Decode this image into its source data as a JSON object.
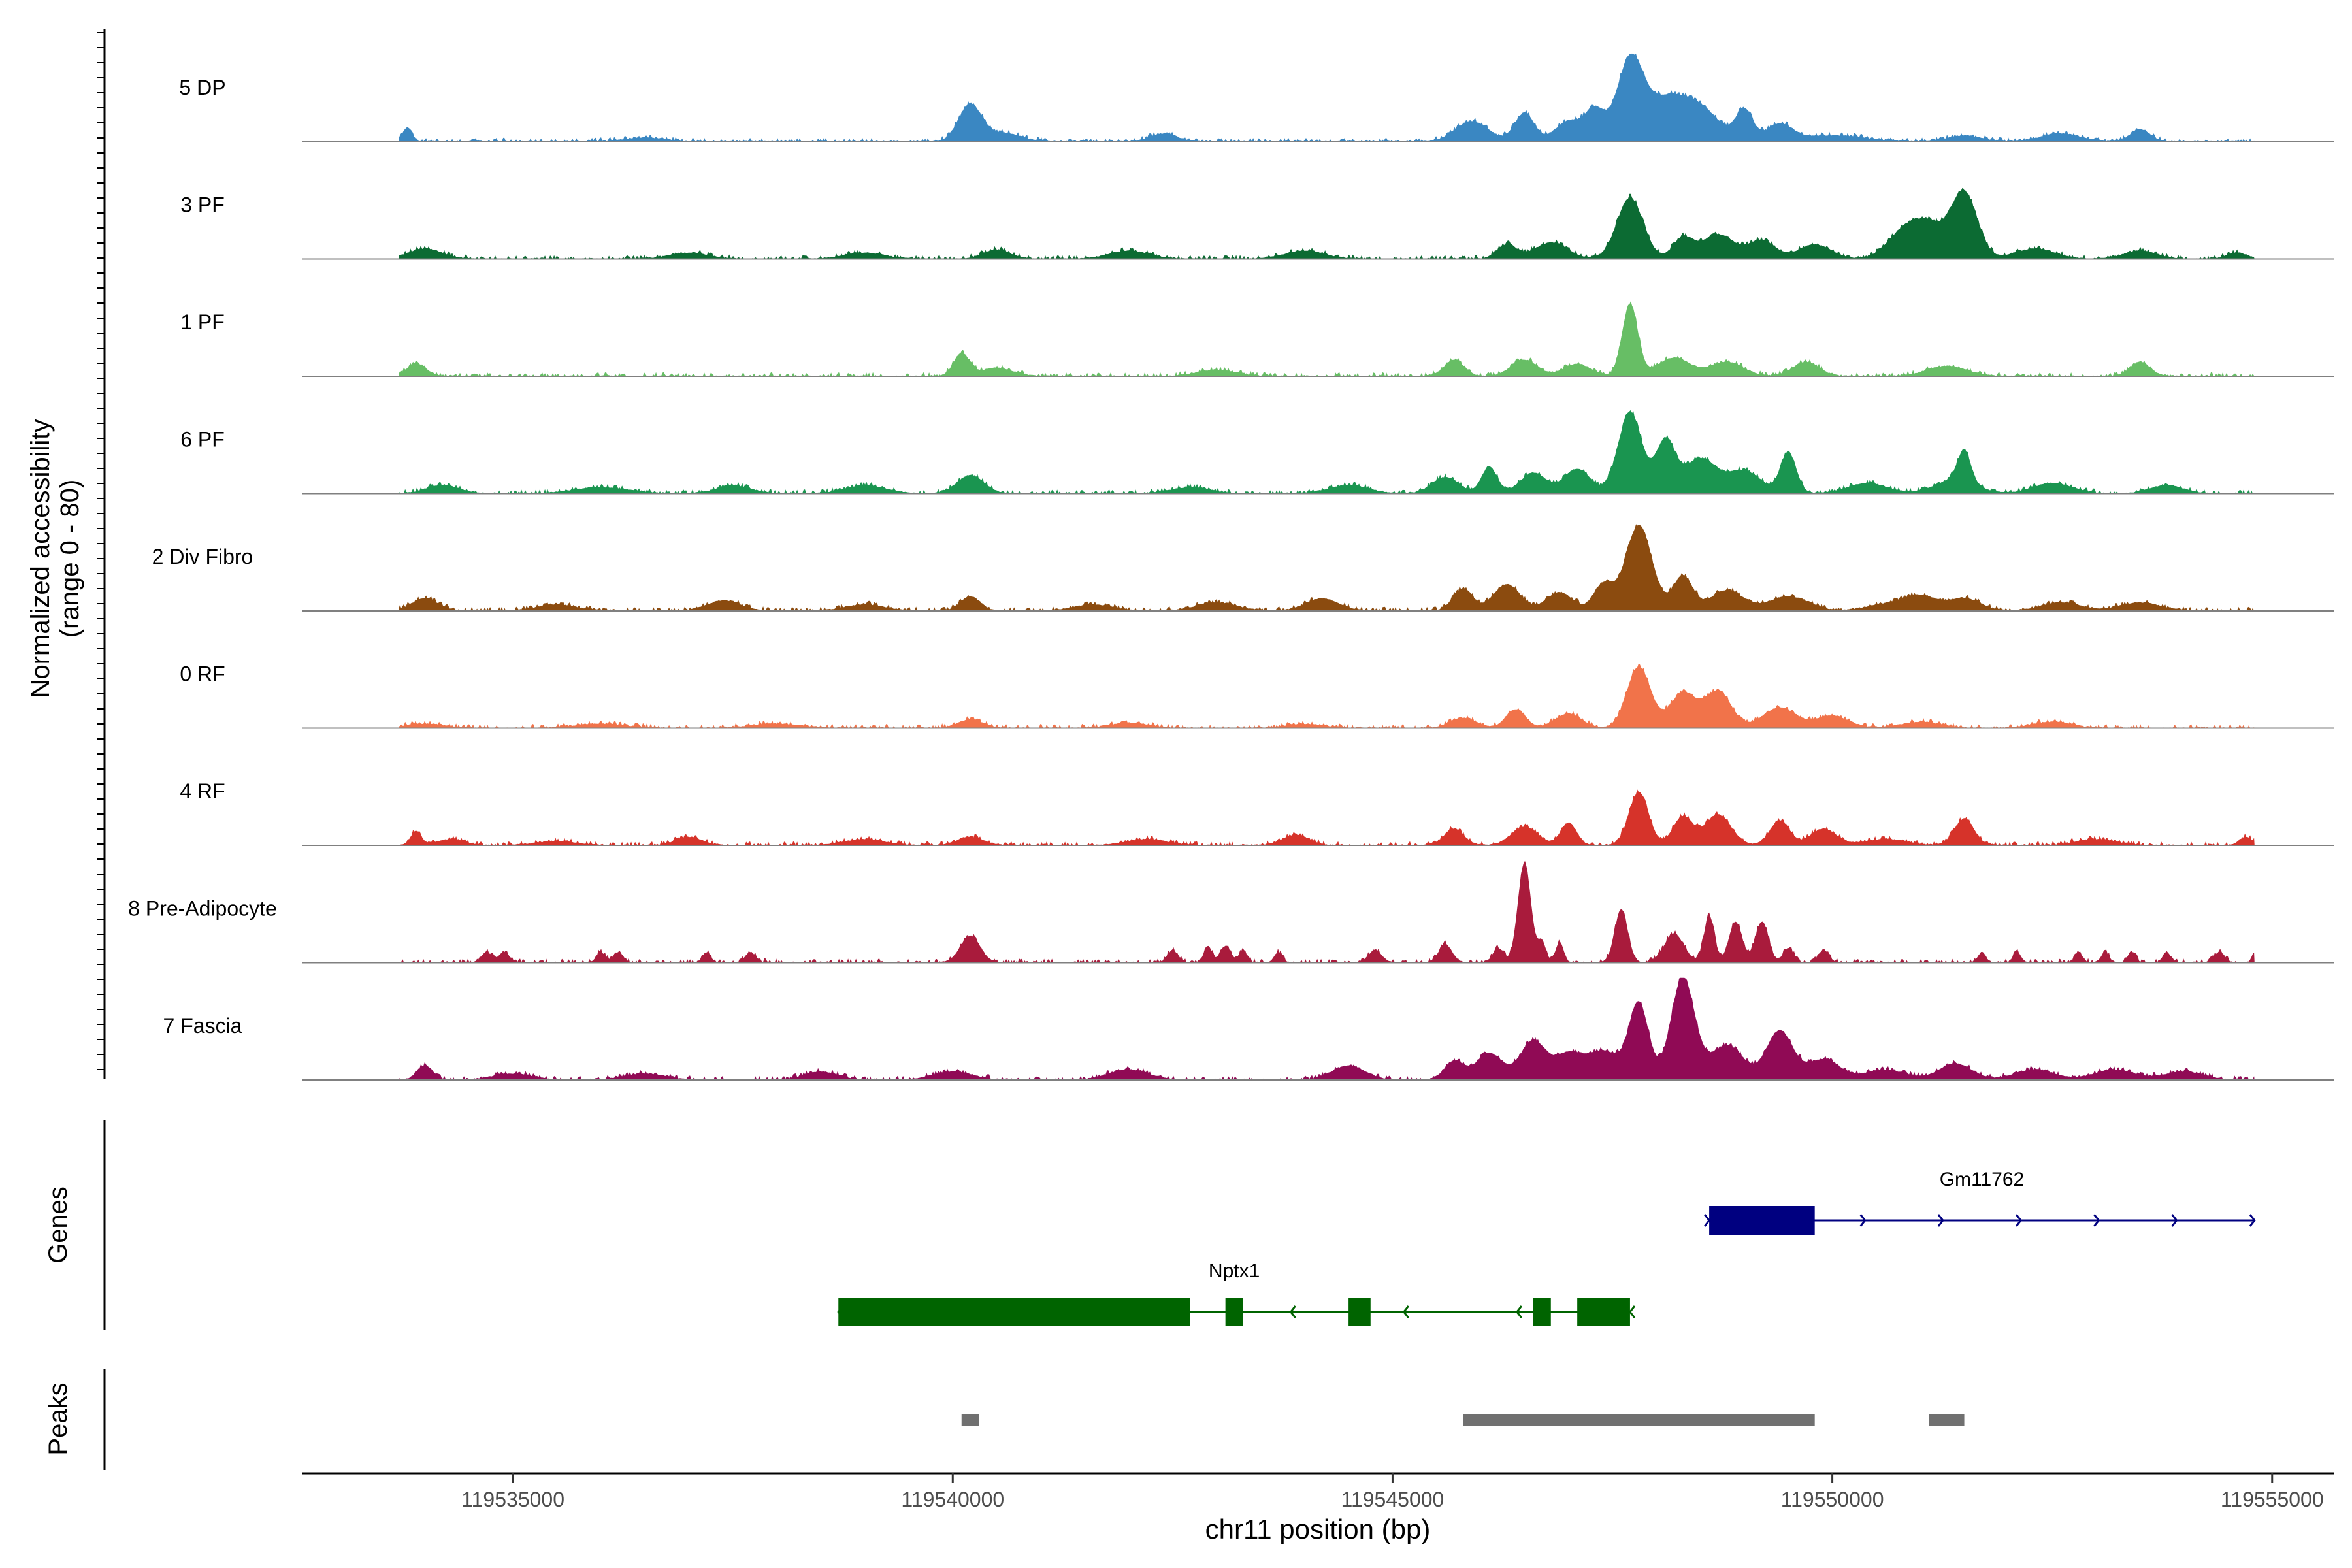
{
  "chart_data": {
    "type": "area",
    "title": "",
    "ylabel": [
      "Normalized accessibility",
      "(range 0 - 80)"
    ],
    "xlabel": "chr11 position (bp)",
    "xlim": [
      119532600,
      119555700
    ],
    "ylim": [
      0,
      80
    ],
    "x_ticks": [
      119535000,
      119540000,
      119545000,
      119550000,
      119555000
    ],
    "x_tick_labels": [
      "119535000",
      "119540000",
      "119545000",
      "119550000",
      "119555000"
    ],
    "track_start": 119533700,
    "track_end": 119554800,
    "tracks": [
      {
        "name": "5 DP",
        "color": "#3A87C2",
        "peaks": [
          [
            119533800,
            14,
            70
          ],
          [
            119536500,
            4,
            300
          ],
          [
            119540200,
            36,
            180
          ],
          [
            119540600,
            8,
            250
          ],
          [
            119542400,
            8,
            200
          ],
          [
            119545900,
            20,
            250
          ],
          [
            119546500,
            28,
            150
          ],
          [
            119547000,
            20,
            200
          ],
          [
            119547300,
            30,
            150
          ],
          [
            119547700,
            78,
            200
          ],
          [
            119548100,
            38,
            300
          ],
          [
            119548500,
            30,
            300
          ],
          [
            119549000,
            30,
            130
          ],
          [
            119549400,
            16,
            200
          ],
          [
            119550000,
            6,
            500
          ],
          [
            119551500,
            6,
            250
          ],
          [
            119552600,
            8,
            300
          ],
          [
            119553500,
            12,
            150
          ]
        ]
      },
      {
        "name": "3 PF",
        "color": "#0C6B33",
        "peaks": [
          [
            119534000,
            10,
            250
          ],
          [
            119537000,
            6,
            300
          ],
          [
            119539000,
            6,
            300
          ],
          [
            119540500,
            9,
            200
          ],
          [
            119542000,
            8,
            300
          ],
          [
            119544000,
            8,
            300
          ],
          [
            119546300,
            14,
            150
          ],
          [
            119546800,
            16,
            250
          ],
          [
            119547700,
            60,
            200
          ],
          [
            119548300,
            20,
            150
          ],
          [
            119548700,
            24,
            250
          ],
          [
            119549200,
            18,
            200
          ],
          [
            119549800,
            14,
            250
          ],
          [
            119550800,
            24,
            250
          ],
          [
            119551500,
            64,
            200
          ],
          [
            119551100,
            30,
            250
          ],
          [
            119552300,
            10,
            300
          ],
          [
            119553500,
            8,
            250
          ],
          [
            119554600,
            6,
            150
          ]
        ]
      },
      {
        "name": "1 PF",
        "color": "#67BE65",
        "peaks": [
          [
            119533900,
            12,
            150
          ],
          [
            119540100,
            22,
            120
          ],
          [
            119540500,
            8,
            250
          ],
          [
            119543000,
            6,
            300
          ],
          [
            119545700,
            16,
            150
          ],
          [
            119546500,
            16,
            200
          ],
          [
            119547100,
            12,
            200
          ],
          [
            119547700,
            70,
            120
          ],
          [
            119548200,
            18,
            250
          ],
          [
            119548800,
            14,
            250
          ],
          [
            119549700,
            14,
            200
          ],
          [
            119551300,
            10,
            300
          ],
          [
            119553500,
            14,
            150
          ]
        ]
      },
      {
        "name": "6 PF",
        "color": "#1A9550",
        "peaks": [
          [
            119534200,
            8,
            250
          ],
          [
            119536000,
            6,
            400
          ],
          [
            119537500,
            8,
            250
          ],
          [
            119539000,
            8,
            300
          ],
          [
            119540200,
            18,
            200
          ],
          [
            119542700,
            6,
            300
          ],
          [
            119544500,
            8,
            300
          ],
          [
            119545600,
            16,
            200
          ],
          [
            119546100,
            26,
            120
          ],
          [
            119546600,
            20,
            200
          ],
          [
            119547100,
            24,
            200
          ],
          [
            119547700,
            80,
            180
          ],
          [
            119548100,
            50,
            150
          ],
          [
            119548500,
            34,
            250
          ],
          [
            119549000,
            22,
            250
          ],
          [
            119549500,
            40,
            120
          ],
          [
            119550400,
            10,
            300
          ],
          [
            119551400,
            14,
            300
          ],
          [
            119551500,
            30,
            100
          ],
          [
            119552500,
            10,
            300
          ],
          [
            119553800,
            8,
            250
          ]
        ]
      },
      {
        "name": "2 Div Fibro",
        "color": "#8B4B0F",
        "peaks": [
          [
            119534000,
            12,
            200
          ],
          [
            119535500,
            6,
            300
          ],
          [
            119537400,
            10,
            250
          ],
          [
            119539000,
            6,
            300
          ],
          [
            119540200,
            14,
            150
          ],
          [
            119541600,
            6,
            300
          ],
          [
            119543000,
            8,
            300
          ],
          [
            119544200,
            12,
            250
          ],
          [
            119545800,
            22,
            150
          ],
          [
            119546300,
            26,
            200
          ],
          [
            119546900,
            18,
            200
          ],
          [
            119547400,
            26,
            150
          ],
          [
            119547800,
            84,
            200
          ],
          [
            119548300,
            34,
            150
          ],
          [
            119548800,
            20,
            250
          ],
          [
            119549500,
            14,
            300
          ],
          [
            119550600,
            6,
            300
          ],
          [
            119551000,
            14,
            250
          ],
          [
            119551500,
            12,
            250
          ],
          [
            119552600,
            8,
            300
          ],
          [
            119553500,
            8,
            300
          ]
        ]
      },
      {
        "name": "0 RF",
        "color": "#F1734A",
        "peaks": [
          [
            119534000,
            4,
            300
          ],
          [
            119536000,
            4,
            400
          ],
          [
            119538000,
            4,
            400
          ],
          [
            119540200,
            8,
            200
          ],
          [
            119542000,
            5,
            300
          ],
          [
            119544000,
            4,
            300
          ],
          [
            119545800,
            10,
            200
          ],
          [
            119546400,
            18,
            150
          ],
          [
            119547000,
            14,
            200
          ],
          [
            119547800,
            60,
            180
          ],
          [
            119548300,
            34,
            200
          ],
          [
            119548700,
            36,
            200
          ],
          [
            119549400,
            20,
            250
          ],
          [
            119550000,
            12,
            250
          ],
          [
            119551000,
            6,
            300
          ],
          [
            119552500,
            6,
            300
          ]
        ]
      },
      {
        "name": "4 RF",
        "color": "#D6332A",
        "peaks": [
          [
            119533900,
            14,
            80
          ],
          [
            119534300,
            6,
            200
          ],
          [
            119535500,
            4,
            300
          ],
          [
            119537000,
            8,
            200
          ],
          [
            119539000,
            6,
            300
          ],
          [
            119540200,
            8,
            200
          ],
          [
            119542200,
            6,
            300
          ],
          [
            119543900,
            10,
            200
          ],
          [
            119545700,
            16,
            150
          ],
          [
            119546500,
            18,
            200
          ],
          [
            119547000,
            22,
            120
          ],
          [
            119547800,
            52,
            150
          ],
          [
            119548300,
            28,
            150
          ],
          [
            119548700,
            30,
            200
          ],
          [
            119549400,
            24,
            150
          ],
          [
            119549900,
            16,
            200
          ],
          [
            119550600,
            6,
            300
          ],
          [
            119551500,
            26,
            150
          ],
          [
            119553000,
            6,
            300
          ],
          [
            119554700,
            8,
            100
          ]
        ]
      },
      {
        "name": "8 Pre-Adipocyte",
        "color": "#A91B3C",
        "peaks": [
          [
            119534700,
            10,
            80
          ],
          [
            119534900,
            10,
            80
          ],
          [
            119536000,
            10,
            70
          ],
          [
            119536200,
            10,
            70
          ],
          [
            119537200,
            10,
            60
          ],
          [
            119537700,
            10,
            80
          ],
          [
            119540200,
            26,
            150
          ],
          [
            119542500,
            12,
            80
          ],
          [
            119542900,
            16,
            60
          ],
          [
            119543100,
            16,
            80
          ],
          [
            119543300,
            12,
            60
          ],
          [
            119543700,
            10,
            60
          ],
          [
            119544800,
            12,
            100
          ],
          [
            119545600,
            18,
            100
          ],
          [
            119546200,
            14,
            80
          ],
          [
            119546500,
            98,
            100
          ],
          [
            119546700,
            20,
            60
          ],
          [
            119546900,
            20,
            60
          ],
          [
            119547600,
            52,
            100
          ],
          [
            119548200,
            28,
            150
          ],
          [
            119548600,
            46,
            80
          ],
          [
            119548900,
            40,
            100
          ],
          [
            119549200,
            40,
            100
          ],
          [
            119549500,
            14,
            80
          ],
          [
            119549900,
            12,
            80
          ],
          [
            119551700,
            10,
            60
          ],
          [
            119552100,
            10,
            60
          ],
          [
            119552800,
            10,
            60
          ],
          [
            119553100,
            10,
            60
          ],
          [
            119553400,
            10,
            60
          ],
          [
            119553800,
            10,
            60
          ],
          [
            119554400,
            10,
            80
          ],
          [
            119554800,
            10,
            40
          ]
        ]
      },
      {
        "name": "7 Fascia",
        "color": "#900A55",
        "peaks": [
          [
            119534000,
            14,
            120
          ],
          [
            119535000,
            6,
            300
          ],
          [
            119536500,
            6,
            300
          ],
          [
            119538500,
            8,
            250
          ],
          [
            119540000,
            8,
            300
          ],
          [
            119542000,
            10,
            300
          ],
          [
            119544500,
            14,
            250
          ],
          [
            119545700,
            18,
            150
          ],
          [
            119546100,
            26,
            200
          ],
          [
            119546600,
            38,
            200
          ],
          [
            119547000,
            24,
            200
          ],
          [
            119547400,
            28,
            250
          ],
          [
            119547800,
            74,
            150
          ],
          [
            119548300,
            100,
            180
          ],
          [
            119548800,
            34,
            250
          ],
          [
            119549400,
            48,
            200
          ],
          [
            119549900,
            20,
            250
          ],
          [
            119550600,
            10,
            300
          ],
          [
            119551400,
            16,
            250
          ],
          [
            119552300,
            10,
            300
          ],
          [
            119553200,
            10,
            300
          ],
          [
            119554000,
            8,
            300
          ]
        ]
      }
    ],
    "genes": [
      {
        "name": "Gm11762",
        "strand": "+",
        "color": "#000080",
        "start": 119548600,
        "end": 119554800,
        "exons": [
          [
            119548600,
            119549800
          ]
        ]
      },
      {
        "name": "Nptx1",
        "strand": "-",
        "color": "#006400",
        "start": 119538700,
        "end": 119547700,
        "exons": [
          [
            119538700,
            119542700
          ],
          [
            119543100,
            119543300
          ],
          [
            119544500,
            119544750
          ],
          [
            119546600,
            119546800
          ],
          [
            119547100,
            119547700
          ]
        ]
      }
    ],
    "peak_regions": [
      [
        119540100,
        119540300
      ],
      [
        119545800,
        119549800
      ],
      [
        119551100,
        119551500
      ]
    ],
    "panel_labels": {
      "genes": "Genes",
      "peaks": "Peaks"
    }
  }
}
